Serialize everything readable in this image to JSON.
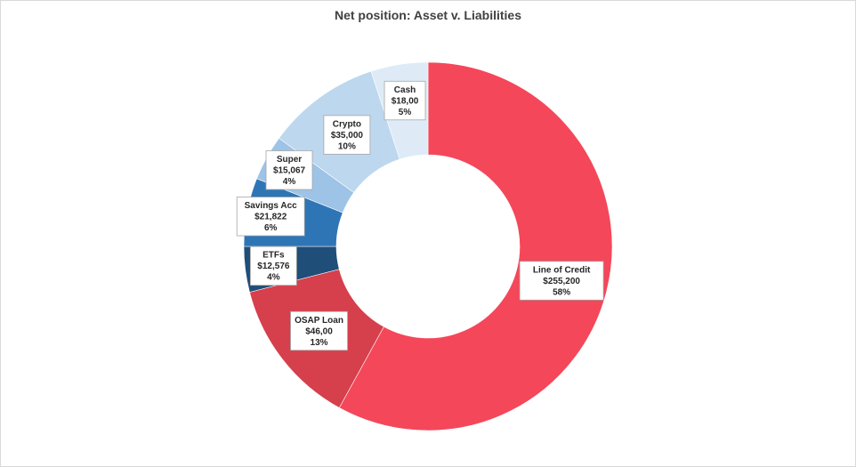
{
  "chart_data": {
    "type": "pie",
    "subtype": "donut",
    "title": "Net position: Asset v. Liabilities",
    "start_angle_deg": 0,
    "direction": "clockwise",
    "legend": "none",
    "slices": [
      {
        "name": "Line of Credit",
        "value_label": "$255,200",
        "percent": 58,
        "percent_label": "58%",
        "color": "#f4475a"
      },
      {
        "name": "OSAP Loan",
        "value_label": "$46,00",
        "percent": 13,
        "percent_label": "13%",
        "color": "#d63f4c"
      },
      {
        "name": "ETFs",
        "value_label": "$12,576",
        "percent": 4,
        "percent_label": "4%",
        "color": "#1f4e79"
      },
      {
        "name": "Savings Acc",
        "value_label": "$21,822",
        "percent": 6,
        "percent_label": "6%",
        "color": "#2e75b6"
      },
      {
        "name": "Super",
        "value_label": "$15,067",
        "percent": 4,
        "percent_label": "4%",
        "color": "#9dc3e6"
      },
      {
        "name": "Crypto",
        "value_label": "$35,000",
        "percent": 10,
        "percent_label": "10%",
        "color": "#bdd7ee"
      },
      {
        "name": "Cash",
        "value_label": "$18,00",
        "percent": 5,
        "percent_label": "5%",
        "color": "#deebf7"
      }
    ]
  }
}
